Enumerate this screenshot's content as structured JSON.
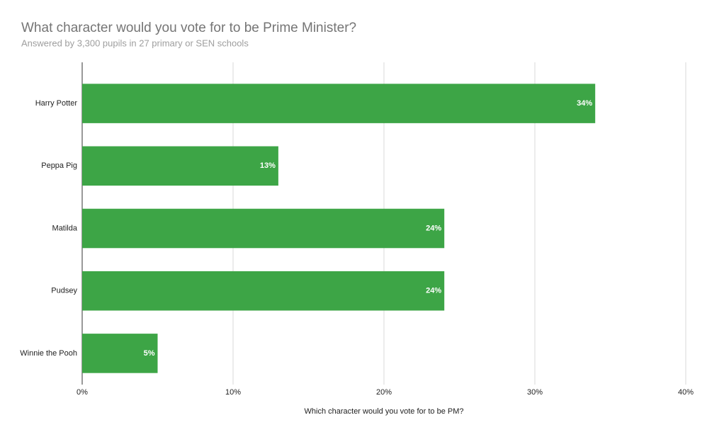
{
  "chart_data": {
    "type": "bar",
    "orientation": "horizontal",
    "title": "What character would you vote for to be Prime Minister?",
    "subtitle": "Answered by 3,300 pupils in 27 primary or SEN schools",
    "x_label": "Which character would you vote for to be PM?",
    "categories": [
      "Harry Potter",
      "Peppa Pig",
      "Matilda",
      "Pudsey",
      "Winnie the Pooh"
    ],
    "values": [
      34,
      13,
      24,
      24,
      5
    ],
    "value_labels": [
      "34%",
      "13%",
      "24%",
      "24%",
      "5%"
    ],
    "color": "#3da546",
    "xlim": [
      0,
      40
    ],
    "xticks": [
      {
        "value": 0,
        "label": "0%"
      },
      {
        "value": 10,
        "label": "10%"
      },
      {
        "value": 20,
        "label": "20%"
      },
      {
        "value": 30,
        "label": "30%"
      },
      {
        "value": 40,
        "label": "40%"
      }
    ],
    "grid": true
  }
}
